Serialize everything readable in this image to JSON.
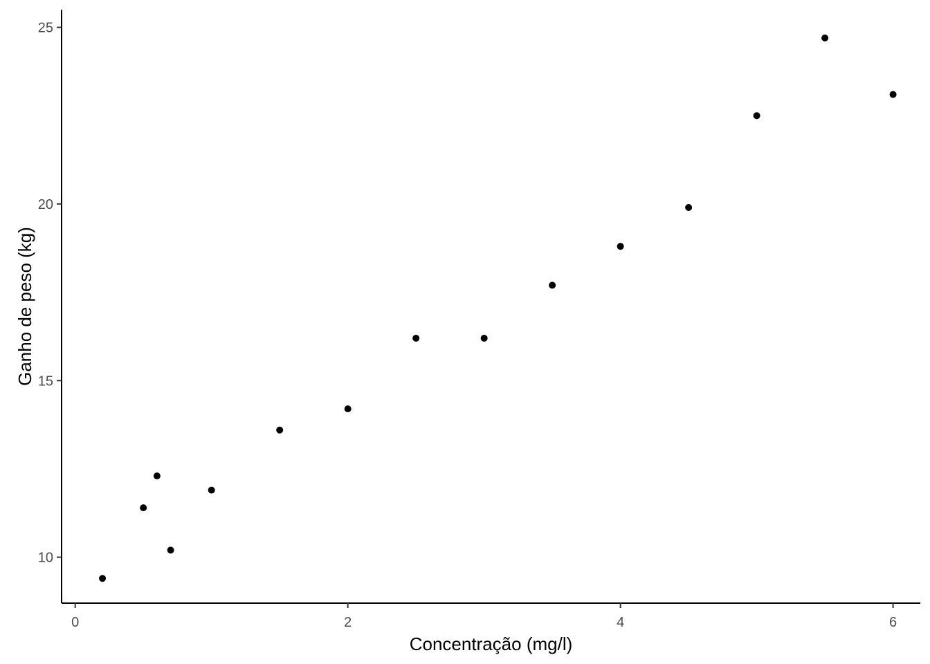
{
  "chart_data": {
    "type": "scatter",
    "title": "",
    "xlabel": "Concentração (mg/l)",
    "ylabel": "Ganho de peso (kg)",
    "xlim": [
      -0.1,
      6.2
    ],
    "ylim": [
      8.7,
      25.5
    ],
    "x_ticks": [
      0,
      2,
      4,
      6
    ],
    "y_ticks": [
      10,
      15,
      20,
      25
    ],
    "grid": false,
    "legend": "none",
    "point_color": "#000000",
    "axis_color": "#000000",
    "tick_label_color": "#4d4d4d",
    "series": [
      {
        "points": [
          {
            "x": 0.2,
            "y": 9.4
          },
          {
            "x": 0.5,
            "y": 11.4
          },
          {
            "x": 0.6,
            "y": 12.3
          },
          {
            "x": 0.7,
            "y": 10.2
          },
          {
            "x": 1.0,
            "y": 11.9
          },
          {
            "x": 1.5,
            "y": 13.6
          },
          {
            "x": 2.0,
            "y": 14.2
          },
          {
            "x": 2.5,
            "y": 16.2
          },
          {
            "x": 3.0,
            "y": 16.2
          },
          {
            "x": 3.5,
            "y": 17.7
          },
          {
            "x": 4.0,
            "y": 18.8
          },
          {
            "x": 4.5,
            "y": 19.9
          },
          {
            "x": 5.0,
            "y": 22.5
          },
          {
            "x": 5.5,
            "y": 24.7
          },
          {
            "x": 6.0,
            "y": 23.1
          }
        ]
      }
    ]
  }
}
